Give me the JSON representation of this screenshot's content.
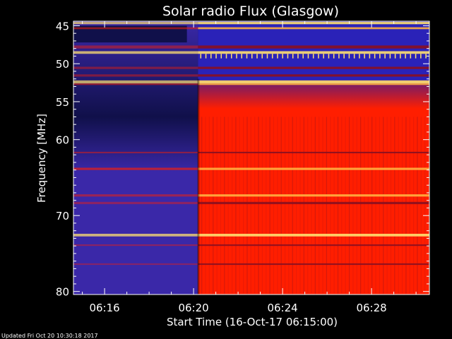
{
  "chart_data": {
    "type": "heatmap",
    "title": "Solar radio Flux (Glasgow)",
    "ylabel": "Frequency [MHz]",
    "xlabel": "Start Time (16-Oct-17 06:15:00)",
    "footer": "Updated Fri Oct 20 10:30:18 2017",
    "x": {
      "unit": "minutes after 06:15:00",
      "range": [
        -0.4,
        15.6
      ],
      "ticks": [
        {
          "value": 1,
          "label": "06:16"
        },
        {
          "value": 5,
          "label": "06:20"
        },
        {
          "value": 9,
          "label": "06:24"
        },
        {
          "value": 13,
          "label": "06:28"
        }
      ]
    },
    "y": {
      "unit": "MHz",
      "range": [
        44.4,
        80.4
      ],
      "reversed": true,
      "major_ticks": [
        {
          "value": 45,
          "label": "45"
        },
        {
          "value": 50,
          "label": "50"
        },
        {
          "value": 55,
          "label": "55"
        },
        {
          "value": 60,
          "label": "60"
        },
        {
          "value": 70,
          "label": "70"
        },
        {
          "value": 80,
          "label": "80"
        }
      ],
      "minor_ticks": [
        46,
        47,
        48,
        49,
        51,
        52,
        53,
        54,
        56,
        57,
        58,
        59,
        61,
        62,
        63,
        64,
        65,
        66,
        67,
        68,
        69,
        71,
        72,
        73,
        74,
        75,
        76,
        77,
        78,
        79
      ]
    },
    "transition_time": 5.2,
    "colors": {
      "low_flux": "#3a28a8",
      "low_flux_dark": "#10104a",
      "high_flux": "#ff1e00",
      "high_flux_dark": "#8a1020",
      "peak": "#ffe070",
      "axes": "#ffffff",
      "background": "#000000"
    },
    "bands": [
      {
        "fmin": 44.5,
        "fmax": 44.8,
        "level": 0.95
      },
      {
        "fmin": 45.2,
        "fmax": 45.45,
        "level": 0.7
      },
      {
        "fmin": 47.6,
        "fmax": 48.0,
        "level": 0.6
      },
      {
        "fmin": 48.35,
        "fmax": 48.7,
        "level": 1.0
      },
      {
        "fmin": 50.4,
        "fmax": 50.7,
        "level": 0.55
      },
      {
        "fmin": 51.4,
        "fmax": 51.7,
        "level": 0.55
      },
      {
        "fmin": 52.2,
        "fmax": 52.6,
        "level": 0.95
      },
      {
        "fmin": 52.6,
        "fmax": 52.8,
        "level": 0.7
      },
      {
        "fmin": 61.6,
        "fmax": 61.8,
        "level": 0.6
      },
      {
        "fmin": 63.7,
        "fmax": 64.0,
        "level": 0.85
      },
      {
        "fmin": 67.2,
        "fmax": 67.5,
        "level": 0.65
      },
      {
        "fmin": 68.2,
        "fmax": 68.5,
        "level": 0.55
      },
      {
        "fmin": 72.4,
        "fmax": 72.75,
        "level": 1.0
      },
      {
        "fmin": 73.8,
        "fmax": 74.0,
        "level": 0.55
      },
      {
        "fmin": 76.3,
        "fmax": 76.5,
        "level": 0.5
      }
    ]
  }
}
